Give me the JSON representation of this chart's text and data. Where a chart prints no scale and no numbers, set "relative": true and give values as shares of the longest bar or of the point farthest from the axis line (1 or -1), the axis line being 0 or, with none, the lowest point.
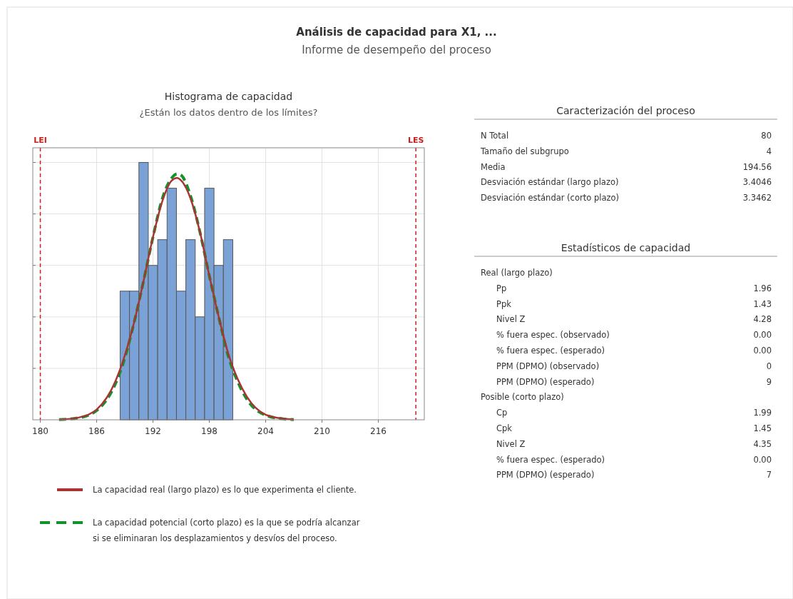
{
  "chart_data": [
    {
      "type": "other",
      "title": "Análisis de capacidad para X1, ...",
      "subtitle": "Informe de desempeño del proceso"
    },
    {
      "type": "histogram",
      "title": "Histograma de capacidad",
      "subtitle": "¿Están los datos dentro de los límites?",
      "relative": true,
      "bins": [
        188.5,
        189.5,
        190.5,
        191.5,
        192.5,
        193.5,
        194.5,
        195.5,
        196.5,
        197.5,
        198.5,
        199.5,
        200.5
      ],
      "values": [
        0.5,
        0.5,
        1,
        0.6,
        0.7,
        0.9,
        0.5,
        0.7,
        0.4,
        0.9,
        0.6,
        0.7
      ],
      "color": "#7ba2d6",
      "xlim": [
        179.2,
        220.9
      ],
      "xticks": [
        180,
        186,
        192,
        198,
        204,
        210,
        216
      ],
      "grid": true,
      "legend": "bottom",
      "ref_lines": [
        {
          "axis": "x",
          "value": 180,
          "label": "LEI",
          "color": "#d01c1c",
          "line_style": "dashed"
        },
        {
          "axis": "x",
          "value": 220,
          "label": "LES",
          "color": "#d01c1c",
          "line_style": "dashed"
        }
      ],
      "series": [
        {
          "type": "line",
          "name": "La capacidad real (largo plazo) es lo que experimenta el cliente.",
          "color": "#a93434",
          "line_style": "solid",
          "x": [
            182,
            184,
            186,
            188,
            189,
            190,
            191,
            192,
            193,
            194,
            194.56,
            195,
            196,
            197,
            198,
            199,
            200,
            201,
            202,
            204,
            206,
            207
          ],
          "values": [
            0.001,
            0.008,
            0.04,
            0.15,
            0.25,
            0.38,
            0.54,
            0.71,
            0.85,
            0.93,
            0.94,
            0.93,
            0.86,
            0.73,
            0.56,
            0.4,
            0.26,
            0.16,
            0.09,
            0.02,
            0.004,
            0.001
          ]
        },
        {
          "type": "line",
          "name": "La capacidad potencial (corto plazo) es la que se podría alcanzar si se eliminaran los desplazamientos y desvíos del proceso.",
          "color": "#12922a",
          "line_style": "dashed",
          "x": [
            182,
            184,
            186,
            188,
            189,
            190,
            191,
            192,
            193,
            194,
            194.56,
            195,
            196,
            197,
            198,
            199,
            200,
            201,
            202,
            204,
            206,
            207
          ],
          "values": [
            0.001,
            0.007,
            0.036,
            0.14,
            0.24,
            0.38,
            0.54,
            0.71,
            0.86,
            0.94,
            0.955,
            0.95,
            0.87,
            0.73,
            0.56,
            0.4,
            0.25,
            0.15,
            0.08,
            0.018,
            0.003,
            0.001
          ]
        }
      ]
    },
    {
      "type": "other",
      "title": "Caracterización del proceso",
      "categories": [
        "N Total",
        "Tamaño del subgrupo",
        "Media",
        "Desviación estándar (largo plazo)",
        "Desviación estándar (corto plazo)"
      ],
      "values": [
        80,
        4,
        194.56,
        3.4046,
        3.3462
      ],
      "value_labels": [
        "80",
        "4",
        "194.56",
        "3.4046",
        "3.3462"
      ]
    },
    {
      "type": "other",
      "title": "Estadísticos de capacidad",
      "categories": [
        "Real (largo plazo)",
        "Pp",
        "Ppk",
        "Nivel Z",
        "% fuera espec. (observado)",
        "% fuera espec. (esperado)",
        "PPM (DPMO) (observado)",
        "PPM (DPMO) (esperado)",
        "Posible (corto plazo)",
        "Cp",
        "Cpk",
        "Nivel Z",
        "% fuera espec. (esperado)",
        "PPM (DPMO) (esperado)"
      ],
      "values": [
        null,
        1.96,
        1.43,
        4.28,
        0,
        0,
        0,
        9,
        null,
        1.99,
        1.45,
        4.35,
        0,
        7
      ],
      "value_labels": [
        null,
        "1.96",
        "1.43",
        "4.28",
        "0.00",
        "0.00",
        "0",
        "9",
        null,
        "1.99",
        "1.45",
        "4.35",
        "0.00",
        "7"
      ]
    }
  ]
}
